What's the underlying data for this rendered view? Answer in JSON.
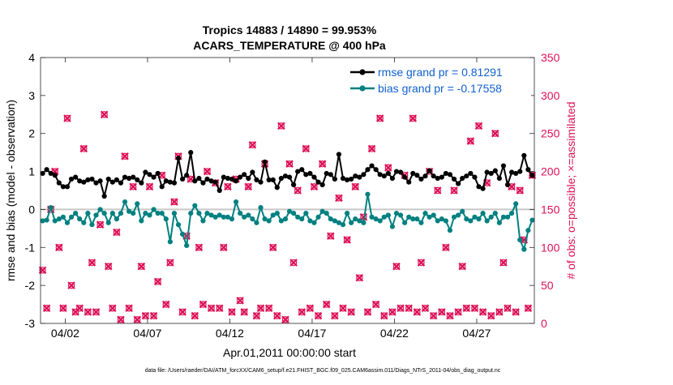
{
  "chart_data": {
    "type": "line",
    "title_line1": "Tropics 14883 / 14890 = 99.953%",
    "title_line2": "ACARS_TEMPERATURE @ 400 hPa",
    "xlabel": "Apr.01,2011 00:00:00 start",
    "ylabel_left": "rmse and bias (model - observation)",
    "ylabel_right": "# of obs: o=possible; ×=assimilated",
    "footer": "data file: /Users/raeder/DAI/ATM_forcXX/CAM6_setup/f.e21.FHIST_BGC.f09_025.CAM6assim.011/Diags_NTrS_2011-04/obs_diag_output.nc",
    "xlim": [
      0.5,
      30.5
    ],
    "ylim_left": [
      -3,
      4
    ],
    "ylim_right": [
      0,
      350
    ],
    "x_ticks": [
      {
        "v": 2,
        "label": "04/02"
      },
      {
        "v": 7,
        "label": "04/07"
      },
      {
        "v": 12,
        "label": "04/12"
      },
      {
        "v": 17,
        "label": "04/17"
      },
      {
        "v": 22,
        "label": "04/22"
      },
      {
        "v": 27,
        "label": "04/27"
      }
    ],
    "y_ticks_left": [
      "-3",
      "-2",
      "-1",
      "0",
      "1",
      "2",
      "3",
      "4"
    ],
    "y_ticks_right": [
      "0",
      "50",
      "100",
      "150",
      "200",
      "250",
      "300",
      "350"
    ],
    "series": [
      {
        "name": "rmse",
        "legend": "rmse grand pr = 0.81291",
        "color": "#000000",
        "axis": "left",
        "x": [
          0.625,
          0.875,
          1.125,
          1.375,
          1.625,
          1.875,
          2.125,
          2.375,
          2.625,
          2.875,
          3.125,
          3.375,
          3.625,
          3.875,
          4.125,
          4.375,
          4.625,
          4.875,
          5.125,
          5.375,
          5.625,
          5.875,
          6.125,
          6.375,
          6.625,
          6.875,
          7.125,
          7.375,
          7.625,
          7.875,
          8.125,
          8.375,
          8.625,
          8.875,
          9.125,
          9.375,
          9.625,
          9.875,
          10.125,
          10.375,
          10.625,
          10.875,
          11.125,
          11.375,
          11.625,
          11.875,
          12.125,
          12.375,
          12.625,
          12.875,
          13.125,
          13.375,
          13.625,
          13.875,
          14.125,
          14.375,
          14.625,
          14.875,
          15.125,
          15.375,
          15.625,
          15.875,
          16.125,
          16.375,
          16.625,
          16.875,
          17.125,
          17.375,
          17.625,
          17.875,
          18.125,
          18.375,
          18.625,
          18.875,
          19.125,
          19.375,
          19.625,
          19.875,
          20.125,
          20.375,
          20.625,
          20.875,
          21.125,
          21.375,
          21.625,
          21.875,
          22.125,
          22.375,
          22.625,
          22.875,
          23.125,
          23.375,
          23.625,
          23.875,
          24.125,
          24.375,
          24.625,
          24.875,
          25.125,
          25.375,
          25.625,
          25.875,
          26.125,
          26.375,
          26.625,
          26.875,
          27.125,
          27.375,
          27.625,
          27.875,
          28.125,
          28.375,
          28.625,
          28.875,
          29.125,
          29.375,
          29.625,
          29.875,
          30.125,
          30.375
        ],
        "y": [
          0.95,
          1.05,
          0.95,
          0.9,
          0.7,
          0.6,
          0.6,
          0.8,
          0.85,
          0.75,
          0.72,
          0.78,
          0.8,
          0.7,
          0.75,
          0.35,
          0.8,
          0.72,
          0.78,
          0.7,
          0.85,
          0.82,
          0.85,
          0.78,
          0.7,
          0.98,
          0.92,
          0.85,
          0.95,
          0.6,
          0.75,
          0.72,
          0.7,
          1.35,
          0.8,
          0.9,
          1.5,
          0.75,
          0.82,
          0.7,
          0.8,
          0.75,
          0.72,
          0.5,
          0.85,
          0.82,
          0.8,
          0.75,
          0.85,
          0.92,
          0.82,
          0.98,
          0.78,
          0.72,
          1.25,
          0.78,
          0.78,
          0.58,
          0.82,
          0.88,
          0.85,
          0.65,
          1.0,
          1.05,
          0.92,
          0.95,
          0.85,
          0.72,
          0.65,
          0.95,
          0.92,
          0.8,
          1.45,
          0.82,
          0.78,
          0.8,
          0.88,
          0.85,
          0.92,
          1.05,
          1.15,
          1.05,
          0.92,
          0.88,
          0.95,
          0.82,
          1.0,
          0.98,
          0.85,
          0.72,
          0.95,
          0.9,
          0.8,
          0.88,
          1.02,
          0.88,
          0.82,
          0.85,
          0.95,
          0.92,
          0.8,
          0.68,
          0.82,
          0.88,
          0.95,
          0.85,
          0.6,
          0.55,
          0.98,
          0.95,
          1.02,
          0.82,
          1.15,
          0.65,
          0.98,
          0.95,
          1.0,
          1.42,
          1.05,
          0.9
        ]
      },
      {
        "name": "bias",
        "legend": "bias grand pr = -0.17558",
        "color": "#008080",
        "axis": "left",
        "x": [
          0.625,
          0.875,
          1.125,
          1.375,
          1.625,
          1.875,
          2.125,
          2.375,
          2.625,
          2.875,
          3.125,
          3.375,
          3.625,
          3.875,
          4.125,
          4.375,
          4.625,
          4.875,
          5.125,
          5.375,
          5.625,
          5.875,
          6.125,
          6.375,
          6.625,
          6.875,
          7.125,
          7.375,
          7.625,
          7.875,
          8.125,
          8.375,
          8.625,
          8.875,
          9.125,
          9.375,
          9.625,
          9.875,
          10.125,
          10.375,
          10.625,
          10.875,
          11.125,
          11.375,
          11.625,
          11.875,
          12.125,
          12.375,
          12.625,
          12.875,
          13.125,
          13.375,
          13.625,
          13.875,
          14.125,
          14.375,
          14.625,
          14.875,
          15.125,
          15.375,
          15.625,
          15.875,
          16.125,
          16.375,
          16.625,
          16.875,
          17.125,
          17.375,
          17.625,
          17.875,
          18.125,
          18.375,
          18.625,
          18.875,
          19.125,
          19.375,
          19.625,
          19.875,
          20.125,
          20.375,
          20.625,
          20.875,
          21.125,
          21.375,
          21.625,
          21.875,
          22.125,
          22.375,
          22.625,
          22.875,
          23.125,
          23.375,
          23.625,
          23.875,
          24.125,
          24.375,
          24.625,
          24.875,
          25.125,
          25.375,
          25.625,
          25.875,
          26.125,
          26.375,
          26.625,
          26.875,
          27.125,
          27.375,
          27.625,
          27.875,
          28.125,
          28.375,
          28.625,
          28.875,
          29.125,
          29.375,
          29.625,
          29.875,
          30.125,
          30.375
        ],
        "y": [
          -0.3,
          -0.28,
          0.05,
          -0.3,
          -0.25,
          -0.2,
          -0.35,
          -0.2,
          -0.1,
          -0.25,
          -0.35,
          -0.1,
          -0.4,
          -0.15,
          0.0,
          -0.1,
          -0.35,
          -0.1,
          -0.25,
          -0.1,
          0.2,
          -0.05,
          -0.1,
          0.15,
          -0.3,
          -0.1,
          -0.15,
          0.0,
          -0.1,
          -0.1,
          -0.25,
          -0.85,
          -0.1,
          -0.4,
          -0.65,
          -0.95,
          -0.1,
          0.1,
          -0.1,
          -0.3,
          -0.1,
          -0.15,
          -0.2,
          -0.15,
          -0.2,
          -0.2,
          -0.25,
          0.2,
          -0.1,
          -0.2,
          -0.15,
          -0.25,
          -0.35,
          0.05,
          -0.25,
          -0.3,
          -0.15,
          -0.1,
          -0.3,
          -0.25,
          -0.05,
          -0.1,
          -0.2,
          -0.25,
          -0.1,
          -0.3,
          -0.35,
          -0.2,
          -0.05,
          -0.1,
          -0.25,
          -0.3,
          -0.35,
          -0.4,
          -0.1,
          -0.35,
          -0.25,
          -0.3,
          -0.35,
          0.4,
          -0.2,
          -0.25,
          -0.3,
          -0.2,
          -0.15,
          -0.45,
          -0.1,
          -0.15,
          -0.35,
          -0.2,
          -0.25,
          -0.25,
          -0.35,
          -0.1,
          -0.2,
          -0.15,
          -0.3,
          -0.25,
          -0.3,
          -0.55,
          -0.2,
          -0.15,
          -0.05,
          -0.25,
          -0.3,
          -0.2,
          -0.25,
          -0.1,
          -0.3,
          -0.2,
          -0.1,
          -0.35,
          -0.2,
          -0.2,
          -0.1,
          0.15,
          -0.8,
          -1.05,
          -0.55,
          -0.28
        ]
      },
      {
        "name": "obs_possible",
        "marker": "circle",
        "color": "#dd1155",
        "axis": "right",
        "x": [
          0.625,
          0.875,
          1.125,
          1.375,
          1.625,
          1.875,
          2.125,
          2.375,
          2.625,
          2.875,
          3.125,
          3.375,
          3.625,
          3.875,
          4.125,
          4.375,
          4.625,
          4.875,
          5.125,
          5.375,
          5.625,
          5.875,
          6.125,
          6.375,
          6.625,
          6.875,
          7.125,
          7.375,
          7.625,
          7.875,
          8.125,
          8.375,
          8.625,
          8.875,
          9.125,
          9.375,
          9.625,
          9.875,
          10.125,
          10.375,
          10.625,
          10.875,
          11.125,
          11.375,
          11.625,
          11.875,
          12.125,
          12.375,
          12.625,
          12.875,
          13.125,
          13.375,
          13.625,
          13.875,
          14.125,
          14.375,
          14.625,
          14.875,
          15.125,
          15.375,
          15.625,
          15.875,
          16.125,
          16.375,
          16.625,
          16.875,
          17.125,
          17.375,
          17.625,
          17.875,
          18.125,
          18.375,
          18.625,
          18.875,
          19.125,
          19.375,
          19.625,
          19.875,
          20.125,
          20.375,
          20.625,
          20.875,
          21.125,
          21.375,
          21.625,
          21.875,
          22.125,
          22.375,
          22.625,
          22.875,
          23.125,
          23.375,
          23.625,
          23.875,
          24.125,
          24.375,
          24.625,
          24.875,
          25.125,
          25.375,
          25.625,
          25.875,
          26.125,
          26.375,
          26.625,
          26.875,
          27.125,
          27.375,
          27.625,
          27.875,
          28.125,
          28.375,
          28.625,
          28.875,
          29.125,
          29.375,
          29.625,
          29.875,
          30.125,
          30.375
        ],
        "y": [
          70,
          20,
          150,
          200,
          100,
          20,
          270,
          50,
          15,
          20,
          230,
          15,
          80,
          15,
          130,
          275,
          75,
          20,
          120,
          5,
          220,
          20,
          180,
          5,
          75,
          10,
          180,
          10,
          55,
          195,
          25,
          80,
          160,
          220,
          15,
          115,
          190,
          10,
          100,
          25,
          200,
          20,
          185,
          20,
          100,
          180,
          15,
          190,
          30,
          15,
          180,
          235,
          10,
          20,
          210,
          20,
          100,
          10,
          260,
          5,
          210,
          80,
          175,
          15,
          230,
          20,
          180,
          10,
          210,
          25,
          115,
          10,
          165,
          20,
          110,
          15,
          180,
          60,
          140,
          15,
          230,
          25,
          270,
          10,
          205,
          15,
          75,
          20,
          195,
          20,
          270,
          15,
          80,
          20,
          200,
          10,
          175,
          15,
          100,
          10,
          175,
          15,
          75,
          20,
          240,
          20,
          260,
          15,
          185,
          10,
          250,
          15,
          80,
          20,
          180,
          15,
          175,
          110,
          20,
          195
        ]
      },
      {
        "name": "obs_assimilated",
        "marker": "x",
        "color": "#dd1155",
        "axis": "right",
        "x": [
          0.625,
          0.875,
          1.125,
          1.375,
          1.625,
          1.875,
          2.125,
          2.375,
          2.625,
          2.875,
          3.125,
          3.375,
          3.625,
          3.875,
          4.125,
          4.375,
          4.625,
          4.875,
          5.125,
          5.375,
          5.625,
          5.875,
          6.125,
          6.375,
          6.625,
          6.875,
          7.125,
          7.375,
          7.625,
          7.875,
          8.125,
          8.375,
          8.625,
          8.875,
          9.125,
          9.375,
          9.625,
          9.875,
          10.125,
          10.375,
          10.625,
          10.875,
          11.125,
          11.375,
          11.625,
          11.875,
          12.125,
          12.375,
          12.625,
          12.875,
          13.125,
          13.375,
          13.625,
          13.875,
          14.125,
          14.375,
          14.625,
          14.875,
          15.125,
          15.375,
          15.625,
          15.875,
          16.125,
          16.375,
          16.625,
          16.875,
          17.125,
          17.375,
          17.625,
          17.875,
          18.125,
          18.375,
          18.625,
          18.875,
          19.125,
          19.375,
          19.625,
          19.875,
          20.125,
          20.375,
          20.625,
          20.875,
          21.125,
          21.375,
          21.625,
          21.875,
          22.125,
          22.375,
          22.625,
          22.875,
          23.125,
          23.375,
          23.625,
          23.875,
          24.125,
          24.375,
          24.625,
          24.875,
          25.125,
          25.375,
          25.625,
          25.875,
          26.125,
          26.375,
          26.625,
          26.875,
          27.125,
          27.375,
          27.625,
          27.875,
          28.125,
          28.375,
          28.625,
          28.875,
          29.125,
          29.375,
          29.625,
          29.875,
          30.125,
          30.375
        ],
        "y": [
          70,
          20,
          150,
          200,
          100,
          20,
          270,
          50,
          15,
          20,
          230,
          15,
          80,
          15,
          130,
          275,
          75,
          20,
          120,
          5,
          220,
          20,
          180,
          5,
          75,
          10,
          180,
          10,
          55,
          195,
          25,
          80,
          160,
          220,
          15,
          115,
          190,
          10,
          100,
          25,
          200,
          20,
          185,
          20,
          100,
          180,
          15,
          190,
          30,
          15,
          180,
          235,
          10,
          20,
          210,
          20,
          100,
          10,
          260,
          5,
          210,
          80,
          175,
          15,
          230,
          20,
          180,
          10,
          210,
          25,
          115,
          10,
          165,
          20,
          110,
          15,
          180,
          60,
          140,
          15,
          230,
          25,
          270,
          10,
          205,
          15,
          75,
          20,
          195,
          20,
          270,
          15,
          80,
          20,
          200,
          10,
          175,
          15,
          100,
          10,
          175,
          15,
          75,
          20,
          240,
          20,
          260,
          15,
          185,
          10,
          250,
          15,
          80,
          20,
          180,
          15,
          175,
          110,
          20,
          195
        ]
      }
    ]
  }
}
